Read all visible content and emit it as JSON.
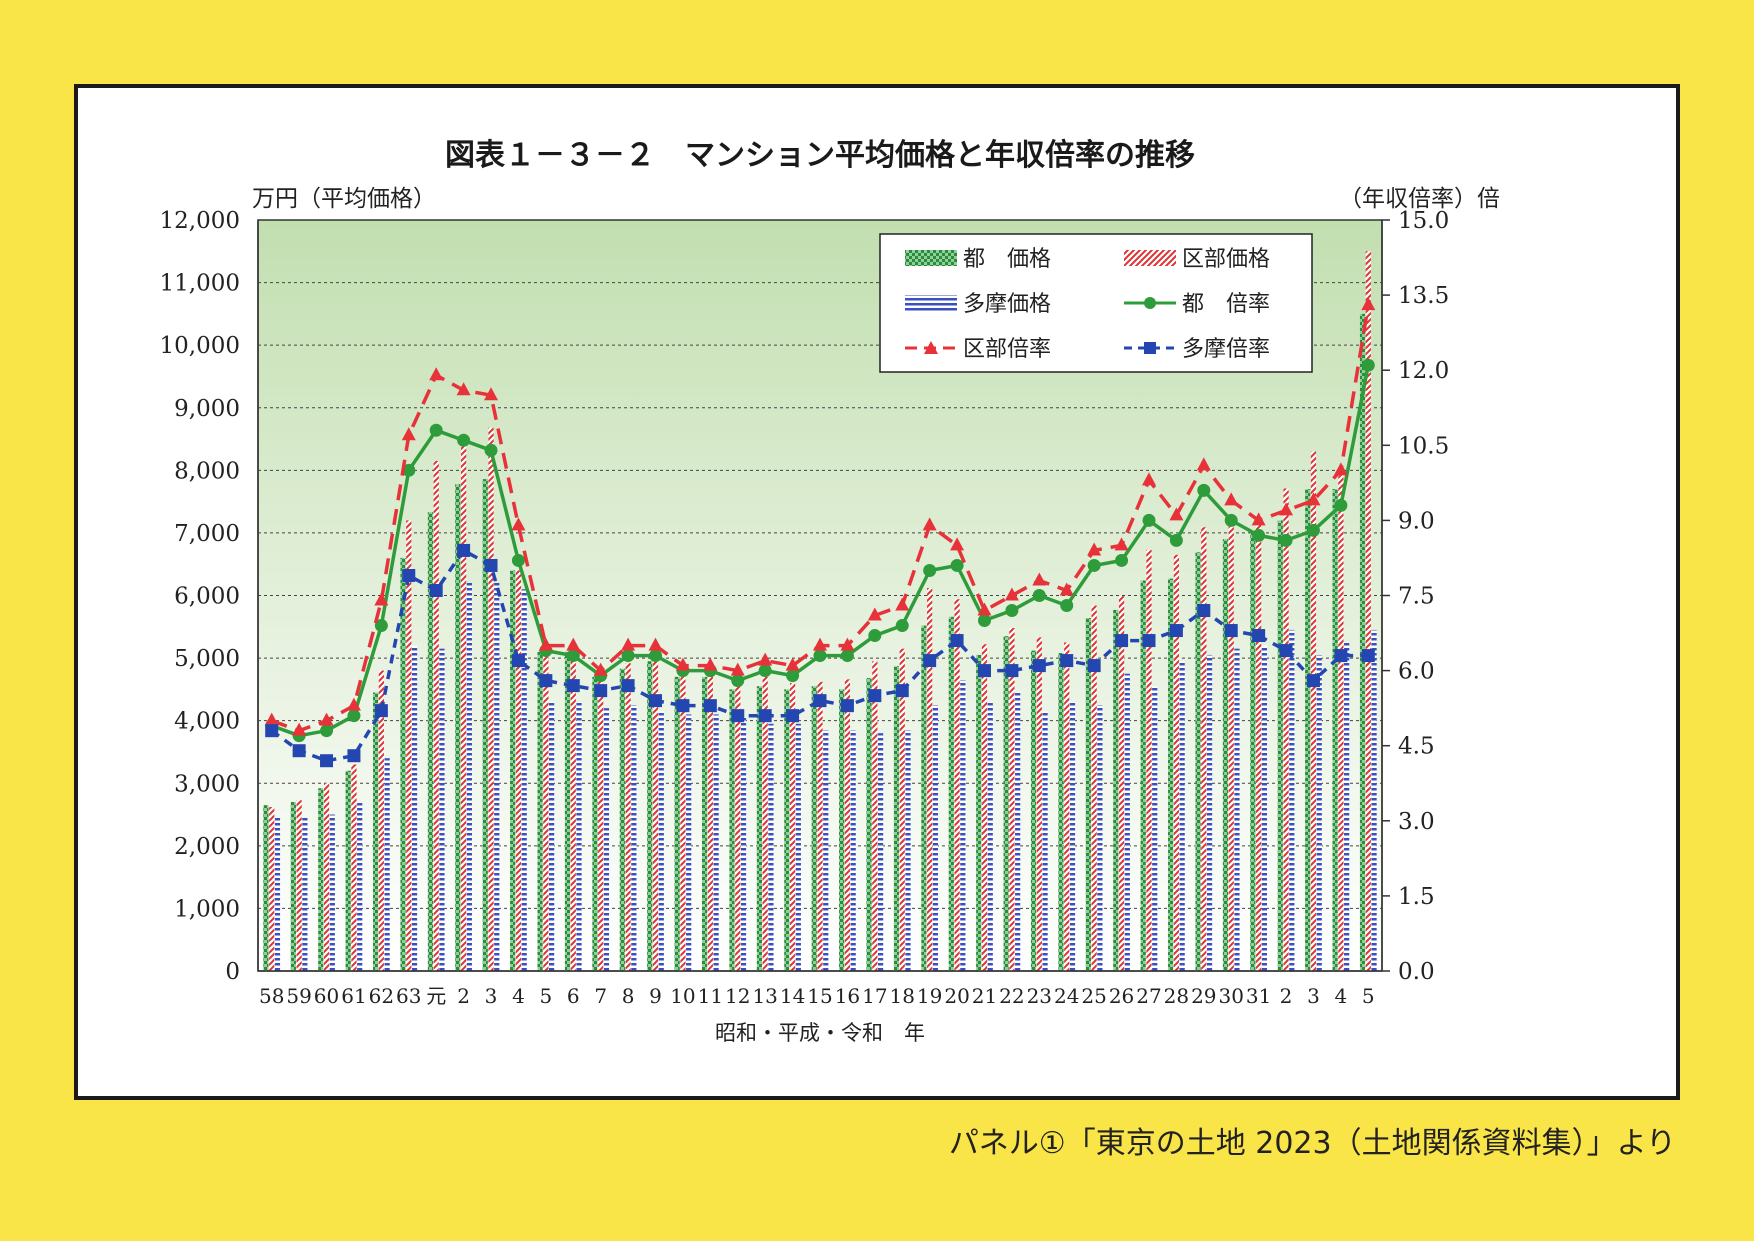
{
  "caption": "パネル①「東京の土地 2023（土地関係資料集）」より",
  "chart_data": {
    "type": "bar",
    "title": "図表１－３－２　マンション平均価格と年収倍率の推移",
    "ylabel_left": "万円（平均価格）",
    "ylabel_right": "（年収倍率）倍",
    "xlabel": "昭和・平成・令和　年",
    "ylim_left": [
      0,
      12000
    ],
    "ylim_right": [
      0,
      15
    ],
    "yticks_left": [
      "0",
      "1,000",
      "2,000",
      "3,000",
      "4,000",
      "5,000",
      "6,000",
      "7,000",
      "8,000",
      "9,000",
      "10,000",
      "11,000",
      "12,000"
    ],
    "yticks_right": [
      "0.0",
      "1.5",
      "3.0",
      "4.5",
      "6.0",
      "7.5",
      "9.0",
      "10.5",
      "12.0",
      "13.5",
      "15.0"
    ],
    "grid": true,
    "legend_position": "top-right",
    "categories": [
      "58",
      "59",
      "60",
      "61",
      "62",
      "63",
      "元",
      "2",
      "3",
      "4",
      "5",
      "6",
      "7",
      "8",
      "9",
      "10",
      "11",
      "12",
      "13",
      "14",
      "15",
      "16",
      "17",
      "18",
      "19",
      "20",
      "21",
      "22",
      "23",
      "24",
      "25",
      "26",
      "27",
      "28",
      "29",
      "30",
      "31",
      "2",
      "3",
      "4",
      "5"
    ],
    "bar_series": [
      {
        "name": "都　価格",
        "color": "#2e8b3e",
        "values": [
          2650,
          2700,
          2920,
          3200,
          4450,
          6600,
          7330,
          7780,
          7860,
          6400,
          5100,
          5100,
          4700,
          4830,
          4950,
          4700,
          4700,
          4500,
          4550,
          4500,
          4550,
          4500,
          4680,
          4870,
          5520,
          5660,
          5050,
          5350,
          5120,
          5080,
          5640,
          5770,
          6240,
          6270,
          6690,
          6900,
          7000,
          7200,
          7700,
          7700,
          10500
        ]
      },
      {
        "name": "区部価格",
        "color": "#e03030",
        "values": [
          2620,
          2730,
          3000,
          3300,
          4800,
          7200,
          8150,
          8430,
          8680,
          6400,
          5180,
          5180,
          4800,
          4920,
          5000,
          4780,
          4780,
          4600,
          4700,
          4600,
          4620,
          4660,
          4950,
          5150,
          6120,
          5940,
          5220,
          5480,
          5330,
          5250,
          5840,
          5990,
          6730,
          6650,
          7090,
          7140,
          7290,
          7710,
          8300,
          8000,
          11500
        ]
      },
      {
        "name": "多摩価格",
        "color": "#3a4fc0",
        "values": [
          2450,
          2450,
          2500,
          2700,
          3400,
          5200,
          5150,
          6200,
          6200,
          6100,
          4300,
          4300,
          4200,
          4250,
          4150,
          4100,
          4100,
          4050,
          3950,
          3950,
          3850,
          3850,
          3800,
          3850,
          4250,
          4650,
          4300,
          4450,
          4150,
          4300,
          4250,
          4750,
          4550,
          4950,
          5050,
          5150,
          5200,
          5450,
          5050,
          5250,
          5450
        ]
      }
    ],
    "line_series": [
      {
        "name": "都　倍率",
        "color": "#2e9c3a",
        "marker": "circle",
        "dash": false,
        "values": [
          4.9,
          4.7,
          4.8,
          5.1,
          6.9,
          10.0,
          10.8,
          10.6,
          10.4,
          8.2,
          6.4,
          6.3,
          5.9,
          6.3,
          6.3,
          6.0,
          6.0,
          5.8,
          6.0,
          5.9,
          6.3,
          6.3,
          6.7,
          6.9,
          8.0,
          8.1,
          7.0,
          7.2,
          7.5,
          7.3,
          8.1,
          8.2,
          9.0,
          8.6,
          9.6,
          9.0,
          8.7,
          8.6,
          8.8,
          9.3,
          12.1
        ]
      },
      {
        "name": "区部倍率",
        "color": "#e8323a",
        "marker": "triangle",
        "dash": true,
        "values": [
          5.0,
          4.8,
          5.0,
          5.3,
          7.4,
          10.7,
          11.9,
          11.6,
          11.5,
          8.9,
          6.5,
          6.5,
          6.0,
          6.5,
          6.5,
          6.1,
          6.1,
          6.0,
          6.2,
          6.1,
          6.5,
          6.5,
          7.1,
          7.3,
          8.9,
          8.5,
          7.2,
          7.5,
          7.8,
          7.6,
          8.4,
          8.5,
          9.8,
          9.1,
          10.1,
          9.4,
          9.0,
          9.2,
          9.4,
          10.0,
          13.3
        ]
      },
      {
        "name": "多摩倍率",
        "color": "#2446b0",
        "marker": "square",
        "dash": true,
        "values": [
          4.8,
          4.4,
          4.2,
          4.3,
          5.2,
          7.9,
          7.6,
          8.4,
          8.1,
          6.2,
          5.8,
          5.7,
          5.6,
          5.7,
          5.4,
          5.3,
          5.3,
          5.1,
          5.1,
          5.1,
          5.4,
          5.3,
          5.5,
          5.6,
          6.2,
          6.6,
          6.0,
          6.0,
          6.1,
          6.2,
          6.1,
          6.6,
          6.6,
          6.8,
          7.2,
          6.8,
          6.7,
          6.4,
          5.8,
          6.3,
          6.3
        ]
      }
    ]
  }
}
